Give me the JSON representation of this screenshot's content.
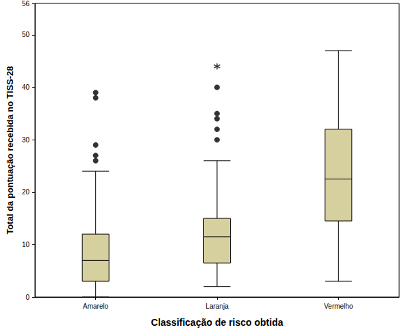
{
  "chart_data": {
    "type": "boxplot",
    "xlabel": "Classificação de risco obtida",
    "ylabel": "Total da pontuação recebida no TISS-28",
    "categories": [
      "Amarelo",
      "Laranja",
      "Vermelho"
    ],
    "boxes": [
      [
        0,
        3,
        7,
        12,
        24
      ],
      [
        2,
        6.5,
        11.5,
        15,
        26
      ],
      [
        3,
        14.5,
        22.5,
        32,
        47
      ]
    ],
    "outliers": {
      "marker": "circle",
      "values": [
        [
          39,
          38,
          29,
          27,
          26
        ],
        [
          40,
          35,
          34,
          32,
          30
        ],
        []
      ]
    },
    "extremes": {
      "marker": "asterisk",
      "values": [
        [],
        [
          44
        ],
        []
      ]
    },
    "color": "#d6cf9e",
    "ylim": [
      0,
      56
    ],
    "yticks": [
      0,
      10,
      20,
      30,
      40,
      50
    ],
    "grid": false
  }
}
